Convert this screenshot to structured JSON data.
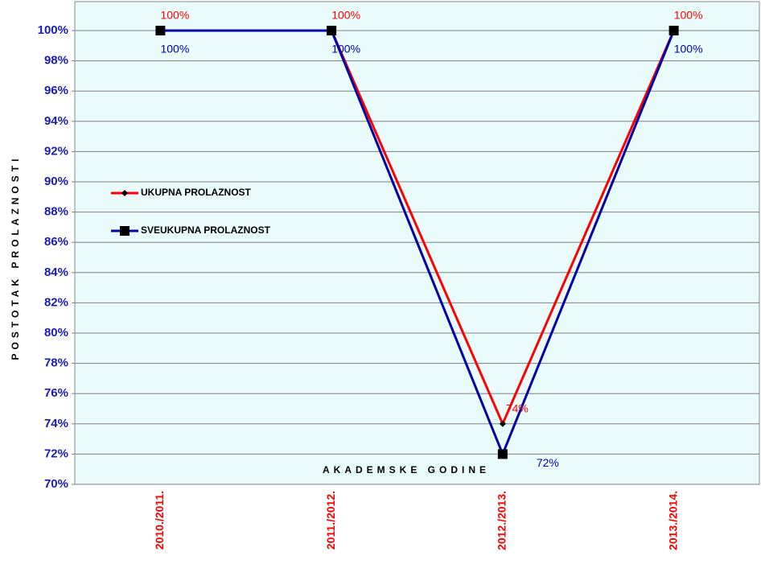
{
  "chart_data": {
    "type": "line",
    "y_axis_label": "POSTOTAK PROLAZNOSTI",
    "x_axis_label": "AKADEMSKE GODINE",
    "categories": [
      "2010./2011.",
      "2011./2012.",
      "2012./2013.",
      "2013./2014."
    ],
    "series": [
      {
        "name": "UKUPNA PROLAZNOST",
        "color": "#ff0000",
        "marker": "diamond",
        "values": [
          100,
          100,
          74,
          100
        ],
        "value_labels": [
          "100%",
          "100%",
          "74%",
          "100%"
        ]
      },
      {
        "name": "SVEUKUPNA PROLAZNOST",
        "color": "#0000aa",
        "marker": "square",
        "values": [
          100,
          100,
          72,
          100
        ],
        "value_labels": [
          "100%",
          "100%",
          "72%",
          "100%"
        ]
      }
    ],
    "ylim": [
      70,
      100
    ],
    "yticks": [
      {
        "value": 70,
        "label": "70%"
      },
      {
        "value": 72,
        "label": "72%"
      },
      {
        "value": 74,
        "label": "74%"
      },
      {
        "value": 76,
        "label": "76%"
      },
      {
        "value": 78,
        "label": "78%"
      },
      {
        "value": 80,
        "label": "80%"
      },
      {
        "value": 82,
        "label": "82%"
      },
      {
        "value": 84,
        "label": "84%"
      },
      {
        "value": 86,
        "label": "86%"
      },
      {
        "value": 88,
        "label": "88%"
      },
      {
        "value": 90,
        "label": "90%"
      },
      {
        "value": 92,
        "label": "92%"
      },
      {
        "value": 94,
        "label": "94%"
      },
      {
        "value": 96,
        "label": "96%"
      },
      {
        "value": 98,
        "label": "98%"
      },
      {
        "value": 100,
        "label": "100%"
      }
    ],
    "grid": true,
    "legend": "left"
  }
}
